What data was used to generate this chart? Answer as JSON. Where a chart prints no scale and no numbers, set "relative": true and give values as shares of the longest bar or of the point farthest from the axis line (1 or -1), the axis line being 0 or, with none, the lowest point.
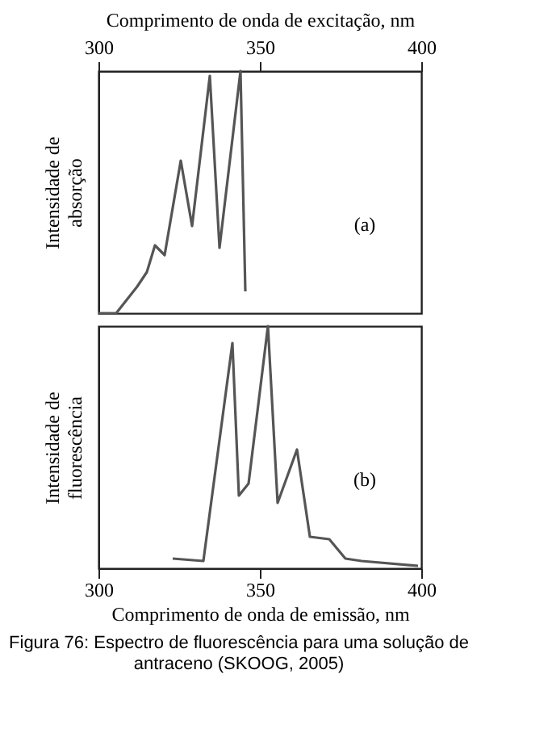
{
  "chart_data": [
    {
      "type": "line",
      "relative": true,
      "xlabel": "Comprimento de onda de excitação, nm",
      "xlim": [
        300,
        400
      ],
      "xticks": [
        300,
        350,
        400
      ],
      "ylabel": "Intensidade de\nabsorção",
      "tick_labels": "x",
      "grid": false,
      "marker": "none",
      "line_style": "solid",
      "series": [
        {
          "color": "#555555",
          "x": [
            300,
            305.5,
            312,
            315,
            317.5,
            320.5,
            325.5,
            329,
            334.5,
            337.5,
            344,
            345.5
          ],
          "values": [
            0,
            0,
            0.11,
            0.17,
            0.28,
            0.24,
            0.63,
            0.36,
            0.98,
            0.27,
            1.0,
            0.09
          ]
        }
      ],
      "annotations": [
        "(a)"
      ]
    },
    {
      "type": "line",
      "relative": true,
      "xlabel": "Comprimento de onda de emissão, nm",
      "xlim": [
        300,
        400
      ],
      "xticks": [
        300,
        350,
        400
      ],
      "ylabel": "Intensidade de\nfluorescência",
      "tick_labels": "x",
      "grid": false,
      "marker": "none",
      "line_style": "solid",
      "series": [
        {
          "color": "#555555",
          "x": [
            323,
            332.5,
            341.5,
            343.5,
            346.5,
            352.5,
            355.5,
            361.5,
            365.5,
            371.5,
            376.5,
            381.5,
            399
          ],
          "values": [
            0.04,
            0.03,
            0.93,
            0.3,
            0.35,
            1.0,
            0.27,
            0.49,
            0.13,
            0.12,
            0.04,
            0.03,
            0.01
          ]
        }
      ],
      "annotations": [
        "(b)",
        "Figura 76: Espectro de fluorescência para uma solução de\nantraceno (SKOOG, 2005)"
      ]
    }
  ]
}
